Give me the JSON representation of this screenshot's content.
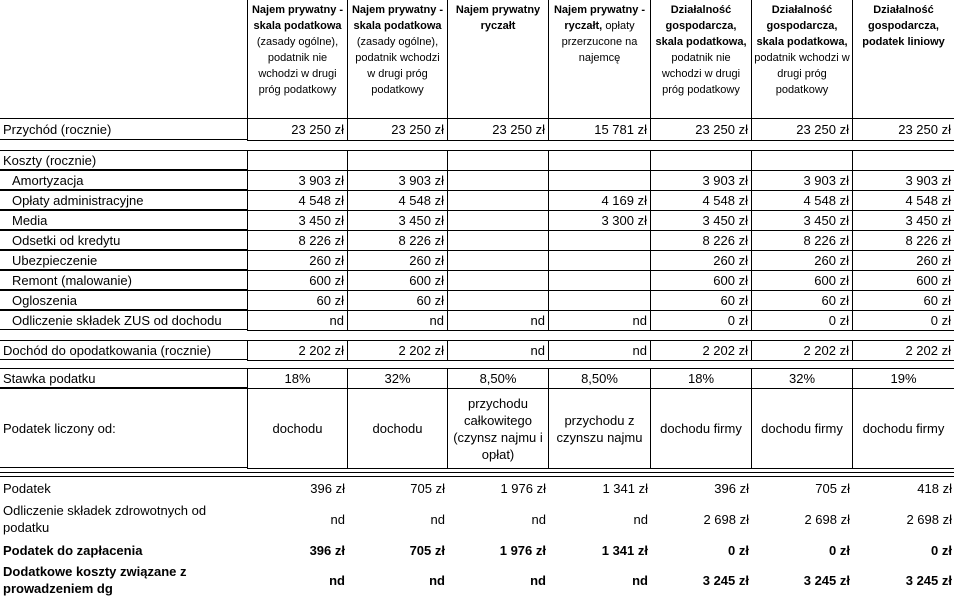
{
  "header": {
    "columns": [
      {
        "bold": "Najem prywatny - skala podatkowa",
        "normal": "(zasady ogólne), podatnik nie wchodzi w drugi próg podatkowy"
      },
      {
        "bold": "Najem prywatny - skala podatkowa",
        "normal": "(zasady ogólne), podatnik wchodzi w drugi próg podatkowy"
      },
      {
        "bold": "Najem prywatny ryczałt",
        "normal": null
      },
      {
        "bold": "Najem prywatny - ryczałt,",
        "normal": "opłaty przerzucone na najemcę"
      },
      {
        "bold": "Działalność gospodarcza, skala podatkowa,",
        "normal": "podatnik nie wchodzi w drugi próg podatkowy"
      },
      {
        "bold": "Działalność gospodarcza, skala podatkowa,",
        "normal": "podatnik wchodzi w drugi próg podatkowy"
      },
      {
        "bold": "Działalność gospodarcza, podatek liniowy",
        "normal": null
      }
    ]
  },
  "table": {
    "rows": [
      {
        "label": "Przychód (rocznie)",
        "cells": [
          "23 250 zł",
          "23 250 zł",
          "23 250 zł",
          "15 781 zł",
          "23 250 zł",
          "23 250 zł",
          "23 250 zł"
        ]
      },
      {
        "label": "Koszty (rocznie)",
        "cells": [
          null,
          null,
          null,
          null,
          null,
          null,
          null
        ]
      },
      {
        "label": "Amortyzacja",
        "cells": [
          "3 903 zł",
          "3 903 zł",
          null,
          null,
          "3 903 zł",
          "3 903 zł",
          "3 903 zł"
        ]
      },
      {
        "label": "Opłaty administracyjne",
        "cells": [
          "4 548 zł",
          "4 548 zł",
          null,
          "4 169 zł",
          "4 548 zł",
          "4 548 zł",
          "4 548 zł"
        ]
      },
      {
        "label": "Media",
        "cells": [
          "3 450 zł",
          "3 450 zł",
          null,
          "3 300 zł",
          "3 450 zł",
          "3 450 zł",
          "3 450 zł"
        ]
      },
      {
        "label": "Odsetki od kredytu",
        "cells": [
          "8 226 zł",
          "8 226 zł",
          null,
          null,
          "8 226 zł",
          "8 226 zł",
          "8 226 zł"
        ]
      },
      {
        "label": "Ubezpieczenie",
        "cells": [
          "260 zł",
          "260 zł",
          null,
          null,
          "260 zł",
          "260 zł",
          "260 zł"
        ]
      },
      {
        "label": "Remont (malowanie)",
        "cells": [
          "600 zł",
          "600 zł",
          null,
          null,
          "600 zł",
          "600 zł",
          "600 zł"
        ]
      },
      {
        "label": "Ogloszenia",
        "cells": [
          "60 zł",
          "60 zł",
          null,
          null,
          "60 zł",
          "60 zł",
          "60 zł"
        ]
      },
      {
        "label": "Odliczenie składek ZUS od dochodu",
        "cells": [
          "nd",
          "nd",
          "nd",
          "nd",
          "0 zł",
          "0 zł",
          "0 zł"
        ]
      },
      {
        "label": "Dochód do opodatkowania (rocznie)",
        "cells": [
          "2 202 zł",
          "2 202 zł",
          "nd",
          "nd",
          "2 202 zł",
          "2 202 zł",
          "2 202 zł"
        ]
      },
      {
        "label": "Stawka podatku",
        "cells": [
          "18%",
          "32%",
          "8,50%",
          "8,50%",
          "18%",
          "32%",
          "19%"
        ]
      },
      {
        "label": "Podatek liczony od:",
        "cells": [
          "dochodu",
          "dochodu",
          "przychodu całkowitego (czynsz najmu i opłat)",
          "przychodu z czynszu najmu",
          "dochodu firmy",
          "dochodu firmy",
          "dochodu firmy"
        ]
      },
      {
        "label": "Podatek",
        "cells": [
          "396 zł",
          "705 zł",
          "1 976 zł",
          "1 341 zł",
          "396 zł",
          "705 zł",
          "418 zł"
        ]
      },
      {
        "label": "Odliczenie składek zdrowotnych od podatku",
        "cells": [
          "nd",
          "nd",
          "nd",
          "nd",
          "2 698 zł",
          "2 698 zł",
          "2 698 zł"
        ]
      },
      {
        "label": "Podatek do zapłacenia",
        "cells": [
          "396 zł",
          "705 zł",
          "1 976 zł",
          "1 341 zł",
          "0 zł",
          "0 zł",
          "0 zł"
        ]
      },
      {
        "label": "Dodatkowe koszty związane z prowadzeniem dg",
        "cells": [
          "nd",
          "nd",
          "nd",
          "nd",
          "3 245 zł",
          "3 245 zł",
          "3 245 zł"
        ]
      }
    ]
  }
}
